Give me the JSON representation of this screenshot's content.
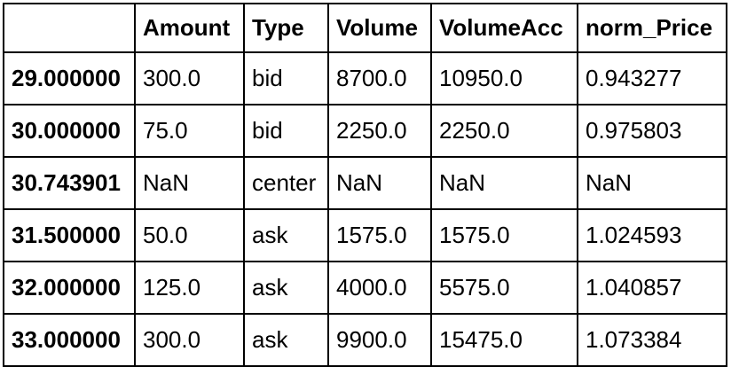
{
  "table": {
    "index_header": "",
    "columns": [
      "Amount",
      "Type",
      "Volume",
      "VolumeAcc",
      "norm_Price"
    ],
    "rows": [
      {
        "index": "29.000000",
        "cells": [
          "300.0",
          "bid",
          "8700.0",
          "10950.0",
          "0.943277"
        ]
      },
      {
        "index": "30.000000",
        "cells": [
          "75.0",
          "bid",
          "2250.0",
          "2250.0",
          "0.975803"
        ]
      },
      {
        "index": "30.743901",
        "cells": [
          "NaN",
          "center",
          "NaN",
          "NaN",
          "NaN"
        ]
      },
      {
        "index": "31.500000",
        "cells": [
          "50.0",
          "ask",
          "1575.0",
          "1575.0",
          "1.024593"
        ]
      },
      {
        "index": "32.000000",
        "cells": [
          "125.0",
          "ask",
          "4000.0",
          "5575.0",
          "1.040857"
        ]
      },
      {
        "index": "33.000000",
        "cells": [
          "300.0",
          "ask",
          "9900.0",
          "15475.0",
          "1.073384"
        ]
      }
    ]
  }
}
